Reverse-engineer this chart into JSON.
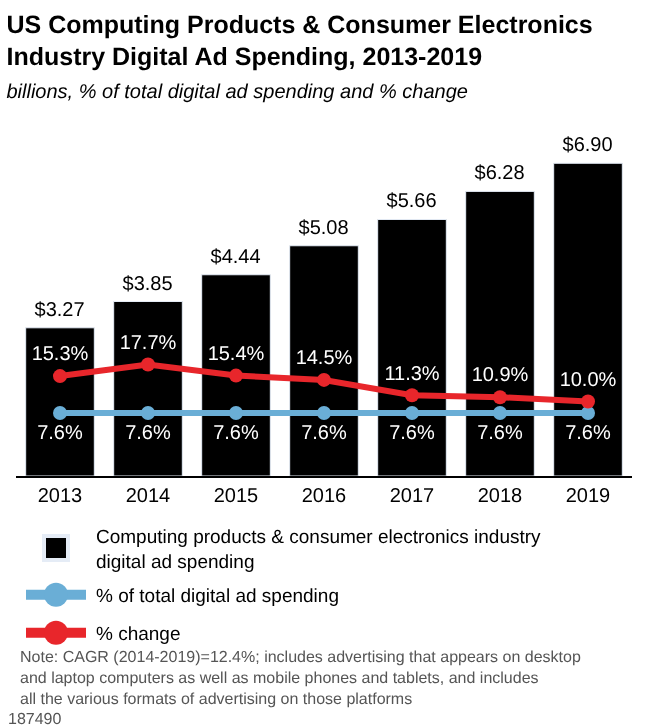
{
  "chart_data": {
    "type": "bar",
    "title": "US Computing Products & Consumer Electronics Industry Digital Ad Spending, 2013-2019",
    "subtitle": "billions, % of total digital ad spending and % change",
    "categories": [
      "2013",
      "2014",
      "2015",
      "2016",
      "2017",
      "2018",
      "2019"
    ],
    "series": [
      {
        "name": "Computing products & consumer electronics industry digital ad spending",
        "color": "#000000",
        "values": [
          3.27,
          3.85,
          4.44,
          5.08,
          5.66,
          6.28,
          6.9
        ],
        "value_labels": [
          "$3.27",
          "$3.85",
          "$4.44",
          "$5.08",
          "$5.66",
          "$6.28",
          "$6.90"
        ]
      },
      {
        "name": "% of total digital ad spending",
        "type": "line",
        "axis": "y2",
        "color": "#6aaed6",
        "values": [
          7.6,
          7.6,
          7.6,
          7.6,
          7.6,
          7.6,
          7.6
        ],
        "value_labels": [
          "7.6%",
          "7.6%",
          "7.6%",
          "7.6%",
          "7.6%",
          "7.6%",
          "7.6%"
        ]
      },
      {
        "name": "% change",
        "type": "line",
        "axis": "y2",
        "color": "#e8262b",
        "values": [
          15.3,
          17.7,
          15.4,
          14.5,
          11.3,
          10.9,
          10.0
        ],
        "value_labels": [
          "15.3%",
          "17.7%",
          "15.4%",
          "14.5%",
          "11.3%",
          "10.9%",
          "10.0%"
        ]
      }
    ],
    "legend": "bottom",
    "marker": "circle",
    "tick_labels": "x",
    "annotations": [
      "Note: CAGR (2014-2019)=12.4%; includes advertising that appears on desktop and laptop computers as well as mobile phones and tablets, and includes all the various formats of advertising on those platforms",
      "187490"
    ]
  }
}
